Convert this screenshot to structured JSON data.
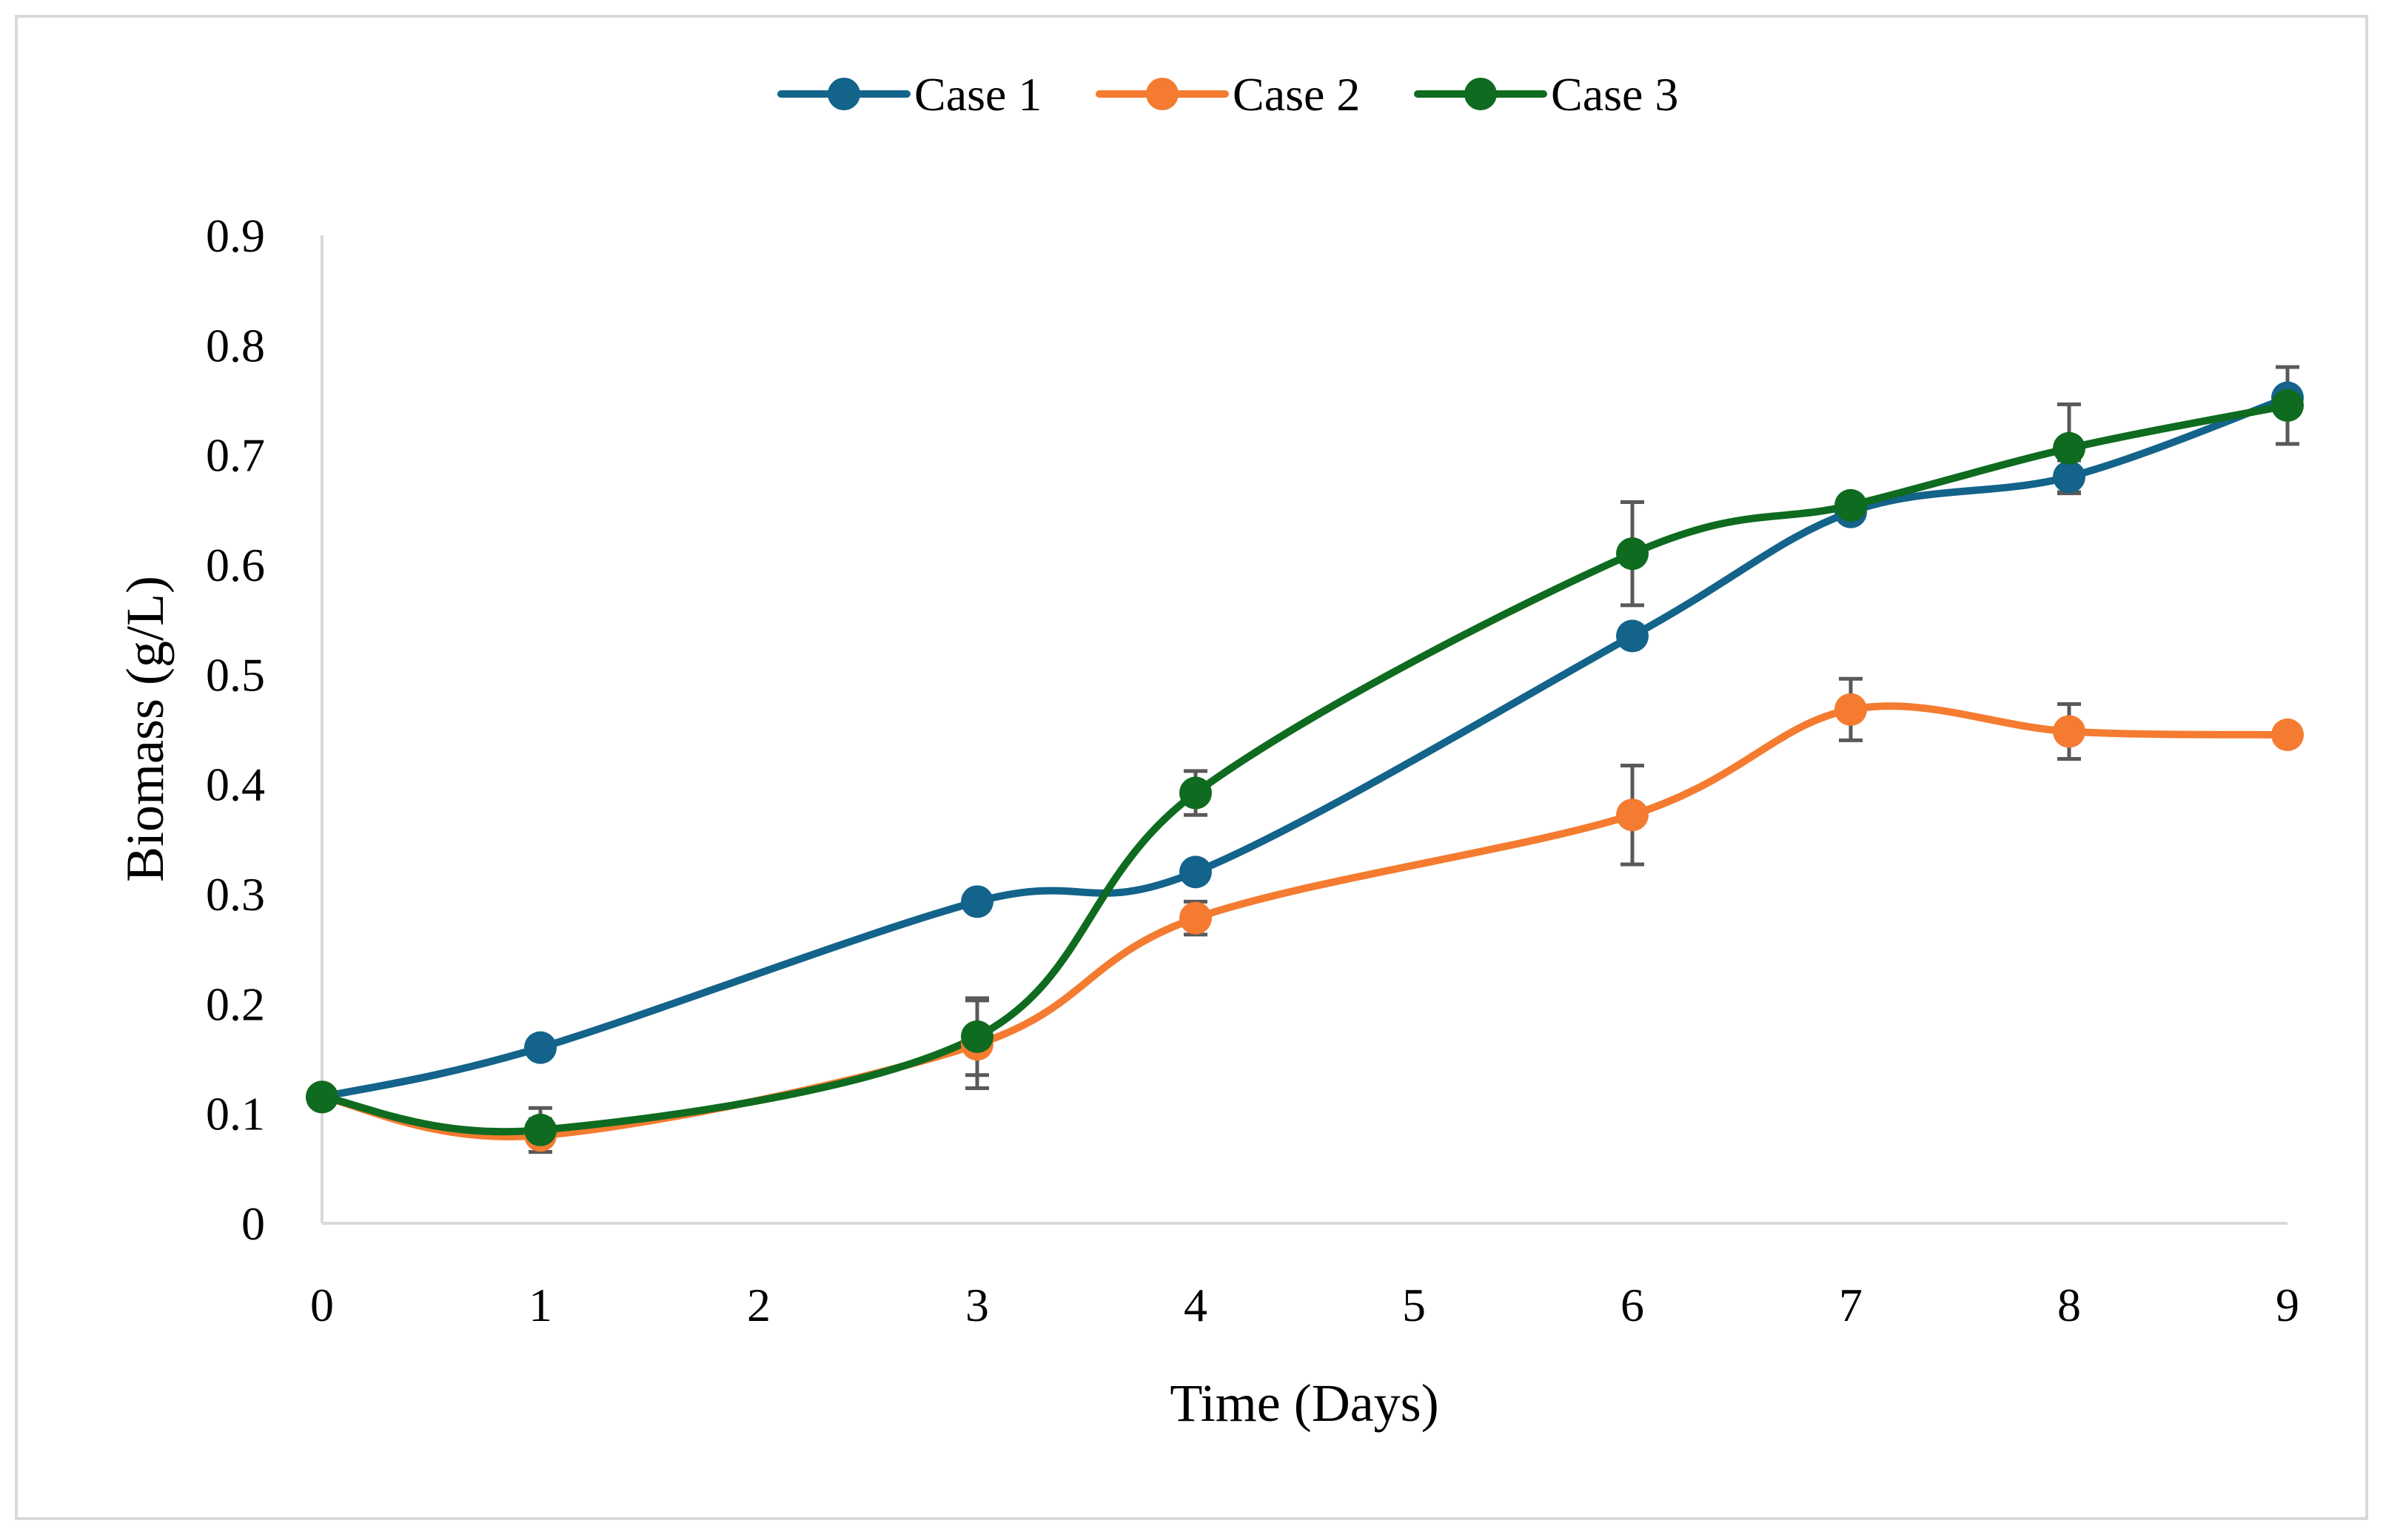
{
  "chart_data": {
    "type": "line",
    "title": "",
    "xlabel": "Time (Days)",
    "ylabel": "Biomass (g/L)",
    "categories": [
      "0",
      "1",
      "2",
      "3",
      "4",
      "5",
      "6",
      "7",
      "8",
      "9"
    ],
    "xlim": [
      0,
      9
    ],
    "ylim": [
      0,
      0.9
    ],
    "yticks": [
      "0",
      "0.1",
      "0.2",
      "0.3",
      "0.4",
      "0.5",
      "0.6",
      "0.7",
      "0.8",
      "0.9"
    ],
    "grid": false,
    "legend_position": "top-center",
    "series": [
      {
        "name": "Case 1",
        "color": "#13638a",
        "x": [
          0,
          1,
          3,
          4,
          6,
          7,
          8,
          9
        ],
        "values": [
          0.115,
          0.16,
          0.293,
          0.32,
          0.535,
          0.648,
          0.68,
          0.752
        ],
        "errors": [
          0,
          0,
          0,
          0,
          0,
          0,
          0.015,
          0
        ]
      },
      {
        "name": "Case 2",
        "color": "#f47b30",
        "x": [
          0,
          1,
          3,
          4,
          6,
          7,
          8,
          9
        ],
        "values": [
          0.115,
          0.08,
          0.163,
          0.278,
          0.372,
          0.468,
          0.448,
          0.445
        ],
        "errors": [
          0,
          0.015,
          0.04,
          0.015,
          0.045,
          0.028,
          0.025,
          0
        ]
      },
      {
        "name": "Case 3",
        "color": "#0e6b1f",
        "x": [
          0,
          1,
          3,
          4,
          6,
          7,
          8,
          9
        ],
        "values": [
          0.115,
          0.085,
          0.17,
          0.392,
          0.61,
          0.654,
          0.706,
          0.745
        ],
        "errors": [
          0,
          0.02,
          0.035,
          0.02,
          0.047,
          0,
          0.04,
          0.035
        ]
      }
    ]
  }
}
